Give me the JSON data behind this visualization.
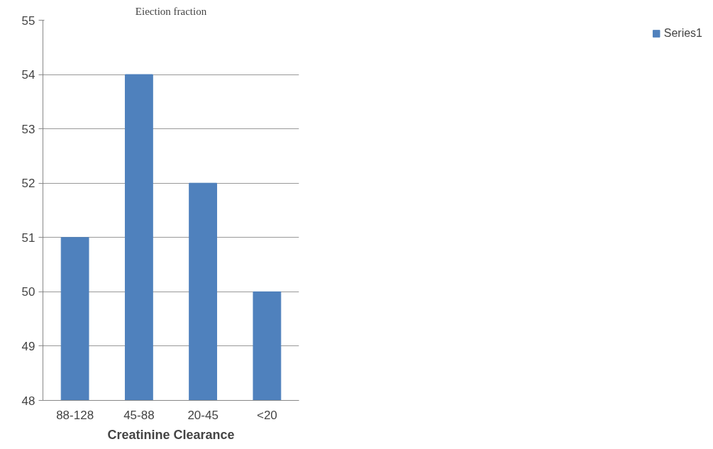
{
  "chart_data": {
    "type": "bar",
    "title": "Eiection fraction",
    "xlabel": "Creatinine Clearance",
    "categories": [
      "88-128",
      "45-88",
      "20-45",
      "<20"
    ],
    "series": [
      {
        "name": "Series1",
        "color": "#4f81bd",
        "values": [
          51,
          54,
          52,
          50
        ]
      }
    ],
    "ylim": [
      48,
      55
    ],
    "yticks": [
      48,
      49,
      50,
      51,
      52,
      53,
      54,
      55
    ],
    "grid": "y",
    "legend": "right"
  }
}
